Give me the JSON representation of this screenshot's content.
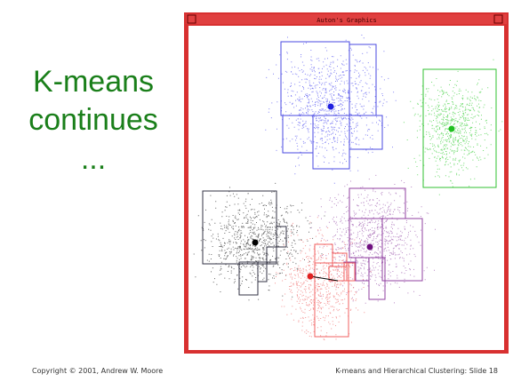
{
  "slide": {
    "title_lines": [
      "K-means",
      "continues",
      "..."
    ]
  },
  "window": {
    "title": "Auton's Graphics"
  },
  "footer": {
    "left": "Copyright © 2001, Andrew W. Moore",
    "right": "K-means and Hierarchical Clustering: Slide 18"
  }
}
